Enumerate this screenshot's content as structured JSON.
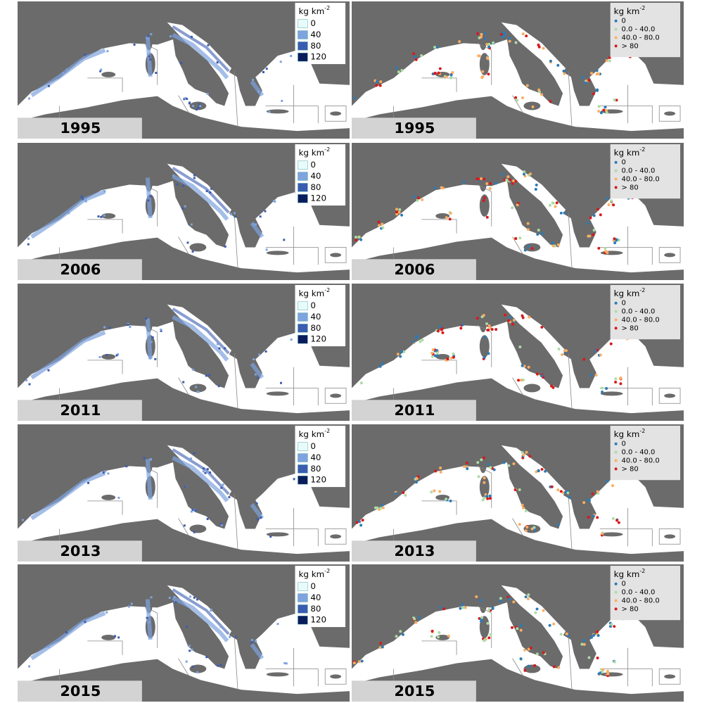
{
  "rows": [
    {
      "year": "1995"
    },
    {
      "year": "2006"
    },
    {
      "year": "2011"
    },
    {
      "year": "2013"
    },
    {
      "year": "2015"
    }
  ],
  "legends": {
    "density": {
      "title": "kg km",
      "title_sup": "-2",
      "items": [
        {
          "label": "0",
          "color": "#e8fbfb"
        },
        {
          "label": "40",
          "color": "#7ea3de"
        },
        {
          "label": "80",
          "color": "#3a5cb0"
        },
        {
          "label": "120",
          "color": "#0a1c5c"
        }
      ]
    },
    "points": {
      "title": "kg km",
      "title_sup": "-2",
      "items": [
        {
          "label": "0",
          "color": "#2c7bb6"
        },
        {
          "label": "0.0 - 40.0",
          "color": "#abdda4"
        },
        {
          "label": "40.0 - 80.0",
          "color": "#fdae61"
        },
        {
          "label": "> 80",
          "color": "#d7191c"
        }
      ]
    }
  }
}
